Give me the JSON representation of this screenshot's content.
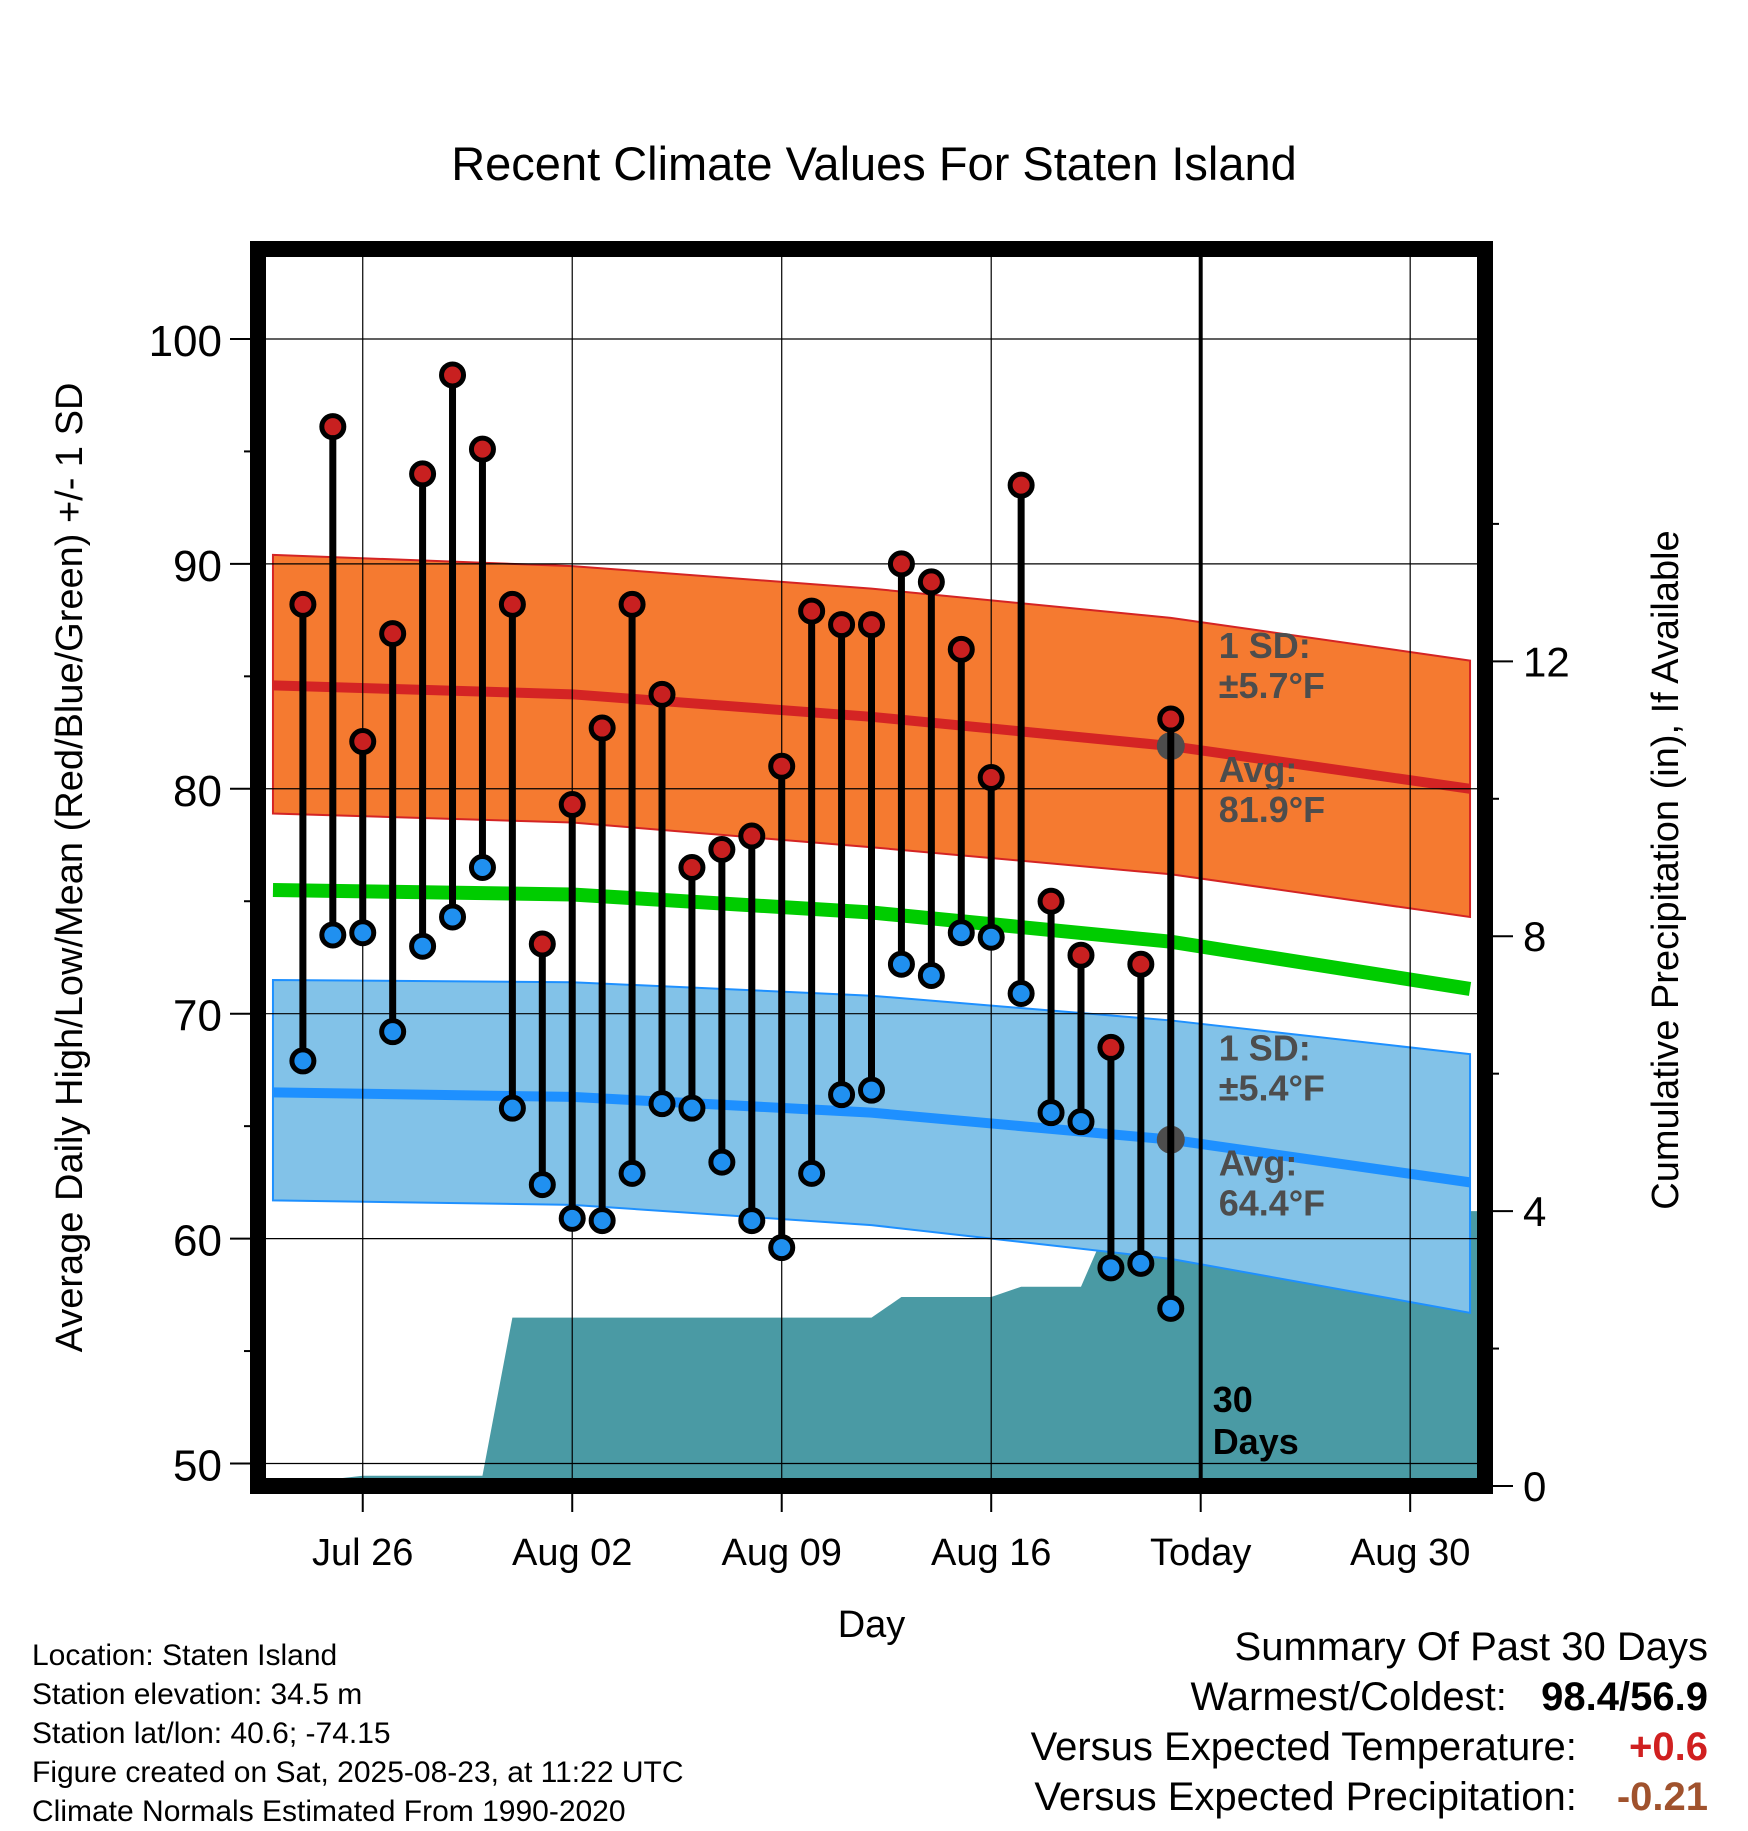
{
  "chart_data": {
    "type": "line",
    "title": "Recent Climate Values For Staten Island",
    "xlabel": "Day",
    "ylabel": "Average Daily High/Low/Mean (Red/Blue/Green) +/- 1 SD",
    "y2label": "Cumulative Precipitation (in), If Available",
    "ylim": [
      49,
      104
    ],
    "y2lim": [
      0,
      18
    ],
    "yticks": [
      "50",
      "60",
      "70",
      "80",
      "90",
      "100"
    ],
    "y2ticks": [
      "0",
      "4",
      "8",
      "12"
    ],
    "xticks": [
      "Jul 26",
      "Aug 02",
      "Aug 09",
      "Aug 16",
      "Today",
      "Aug 30"
    ],
    "xtick_days": [
      3,
      10,
      17,
      24,
      31,
      38
    ],
    "xlim": [
      -0.5,
      40.5
    ],
    "today_day": 31,
    "today_label": [
      "30",
      "Days"
    ],
    "days": [
      1,
      2,
      3,
      4,
      5,
      6,
      7,
      8,
      9,
      10,
      11,
      12,
      13,
      14,
      15,
      16,
      17,
      18,
      19,
      20,
      21,
      22,
      23,
      24,
      25,
      26,
      27,
      28,
      29,
      30
    ],
    "highs": [
      88.2,
      96.1,
      82.1,
      86.9,
      94.0,
      98.4,
      95.1,
      88.2,
      73.1,
      79.3,
      82.7,
      88.2,
      84.2,
      76.5,
      77.3,
      77.9,
      81.0,
      87.9,
      87.3,
      87.3,
      90.0,
      89.2,
      86.2,
      80.5,
      93.5,
      75.0,
      72.6,
      68.5,
      72.2,
      83.1
    ],
    "lows": [
      67.9,
      73.5,
      73.6,
      69.2,
      73.0,
      74.3,
      76.5,
      65.8,
      62.4,
      60.9,
      60.8,
      62.9,
      66.0,
      65.8,
      63.4,
      60.8,
      59.6,
      62.9,
      66.4,
      66.6,
      72.2,
      71.7,
      73.6,
      73.4,
      70.9,
      65.6,
      65.2,
      58.7,
      58.9,
      56.9
    ],
    "normals": {
      "days": [
        0,
        10,
        20,
        30,
        40
      ],
      "high_avg": [
        84.6,
        84.2,
        83.2,
        81.9,
        80.0
      ],
      "high_plus_sd": [
        90.4,
        89.9,
        88.9,
        87.6,
        85.7
      ],
      "high_minus_sd": [
        78.9,
        78.5,
        77.4,
        76.2,
        74.3
      ],
      "mean": [
        75.5,
        75.3,
        74.5,
        73.2,
        71.1
      ],
      "low_avg": [
        66.5,
        66.3,
        65.6,
        64.4,
        62.5
      ],
      "low_plus_sd": [
        71.5,
        71.4,
        70.8,
        69.7,
        68.2
      ],
      "low_minus_sd": [
        61.7,
        61.5,
        60.6,
        59.1,
        56.7
      ]
    },
    "precip_cumulative_in": [
      0,
      0.1,
      0.15,
      0.15,
      0.15,
      0.15,
      0.15,
      2.45,
      2.45,
      2.45,
      2.45,
      2.45,
      2.45,
      2.45,
      2.45,
      2.45,
      2.45,
      2.45,
      2.45,
      2.45,
      2.75,
      2.75,
      2.75,
      2.75,
      2.9,
      2.9,
      2.9,
      3.9,
      4.0,
      4.0
    ],
    "annotations": {
      "high_sd_label": [
        "1 SD:",
        "±5.7°F"
      ],
      "high_avg_label": [
        "Avg:",
        "81.9°F"
      ],
      "low_sd_label": [
        "1 SD:",
        "±5.4°F"
      ],
      "low_avg_label": [
        "Avg:",
        "64.4°F"
      ]
    },
    "colors": {
      "high_band": "#f57a30",
      "high_line": "#d42424",
      "mean_line": "#00cc00",
      "low_band": "#82c2e8",
      "low_line": "#1e90ff",
      "precip": "#4a9aa4",
      "high_dot": "#c82020",
      "low_dot": "#2090f0",
      "annotation": "#4d4d4d"
    }
  },
  "info": {
    "location": "Location: Staten Island",
    "elevation": "Station elevation: 34.5 m",
    "latlon": "Station lat/lon: 40.6; -74.15",
    "created": "Figure created on Sat, 2025-08-23, at 11:22 UTC",
    "normals": "Climate Normals Estimated From 1990-2020"
  },
  "summary": {
    "title": "Summary Of Past 30 Days",
    "warmest_label": "Warmest/Coldest:",
    "warmest_value": "98.4/56.9",
    "temp_label": "Versus Expected Temperature:",
    "temp_value": "+0.6",
    "precip_label": "Versus Expected Precipitation:",
    "precip_value": "-0.21"
  }
}
